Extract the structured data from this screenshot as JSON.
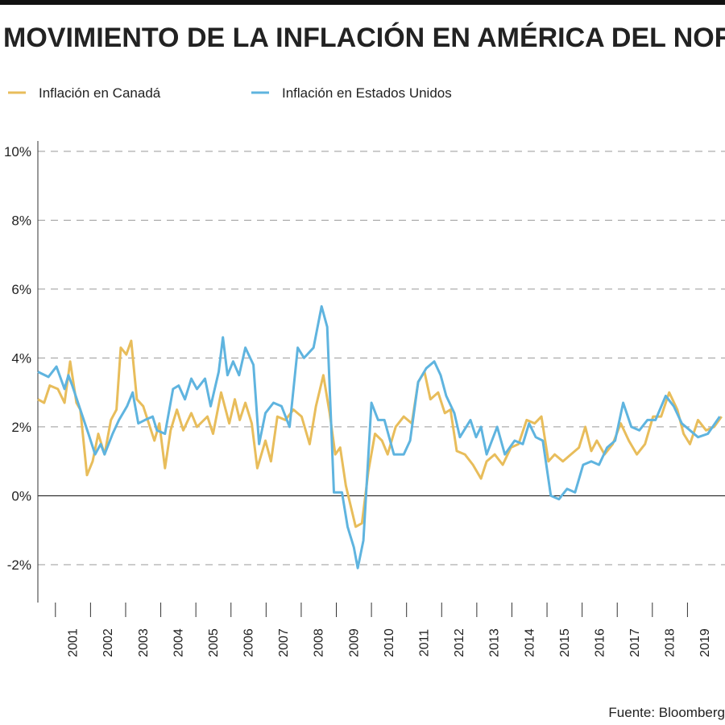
{
  "chart_data": {
    "type": "line",
    "title": "MOVIMIENTO DE LA INFLACIÓN EN AMÉRICA DEL NORTE",
    "source": "Fuente: Bloomberg",
    "xlim": [
      2000.5,
      2020.0
    ],
    "xticks": [
      2001,
      2002,
      2003,
      2004,
      2005,
      2006,
      2007,
      2008,
      2009,
      2010,
      2011,
      2012,
      2013,
      2014,
      2015,
      2016,
      2017,
      2018,
      2019
    ],
    "ylim": [
      -3.1,
      10.3
    ],
    "yticks": [
      {
        "value": -2,
        "label": "-2%"
      },
      {
        "value": 0,
        "label": "0%"
      },
      {
        "value": 2,
        "label": "2%"
      },
      {
        "value": 4,
        "label": "4%"
      },
      {
        "value": 6,
        "label": "6%"
      },
      {
        "value": 8,
        "label": "8%"
      },
      {
        "value": 10,
        "label": "10%"
      }
    ],
    "grid": true,
    "series": [
      {
        "name": "Inflación en Canadá",
        "color": "#e8bd5b",
        "x": [
          2000.5,
          2000.68,
          2000.84,
          2001.07,
          2001.26,
          2001.42,
          2001.6,
          2001.71,
          2001.9,
          2002.06,
          2002.22,
          2002.4,
          2002.58,
          2002.74,
          2002.86,
          2003.02,
          2003.16,
          2003.32,
          2003.5,
          2003.66,
          2003.82,
          2003.96,
          2004.12,
          2004.28,
          2004.46,
          2004.64,
          2004.87,
          2005.03,
          2005.33,
          2005.49,
          2005.72,
          2005.95,
          2006.11,
          2006.25,
          2006.41,
          2006.59,
          2006.75,
          2006.98,
          2007.14,
          2007.32,
          2007.55,
          2007.78,
          2008.01,
          2008.24,
          2008.42,
          2008.63,
          2008.81,
          2008.97,
          2009.11,
          2009.27,
          2009.55,
          2009.73,
          2009.91,
          2010.1,
          2010.3,
          2010.46,
          2010.69,
          2010.92,
          2011.15,
          2011.33,
          2011.51,
          2011.68,
          2011.9,
          2012.09,
          2012.25,
          2012.43,
          2012.66,
          2012.89,
          2013.12,
          2013.28,
          2013.51,
          2013.74,
          2013.97,
          2014.19,
          2014.42,
          2014.65,
          2014.84,
          2015.04,
          2015.22,
          2015.45,
          2015.68,
          2015.91,
          2016.09,
          2016.26,
          2016.42,
          2016.64,
          2016.87,
          2017.1,
          2017.33,
          2017.56,
          2017.79,
          2018.02,
          2018.25,
          2018.48,
          2018.71,
          2018.89,
          2019.07,
          2019.3,
          2019.53,
          2019.76,
          2019.97
        ],
        "values": [
          2.8,
          2.7,
          3.2,
          3.1,
          2.7,
          3.9,
          2.7,
          2.5,
          0.6,
          1.0,
          1.8,
          1.2,
          2.2,
          2.5,
          4.3,
          4.1,
          4.5,
          2.8,
          2.6,
          2.1,
          1.6,
          2.1,
          0.8,
          1.9,
          2.5,
          1.9,
          2.4,
          2.0,
          2.3,
          1.8,
          3.0,
          2.1,
          2.8,
          2.2,
          2.7,
          2.1,
          0.8,
          1.6,
          1.0,
          2.3,
          2.2,
          2.5,
          2.3,
          1.5,
          2.6,
          3.5,
          2.4,
          1.2,
          1.4,
          0.3,
          -0.9,
          -0.8,
          0.7,
          1.8,
          1.6,
          1.2,
          2.0,
          2.3,
          2.1,
          3.3,
          3.6,
          2.8,
          3.0,
          2.4,
          2.5,
          1.3,
          1.2,
          0.9,
          0.5,
          1.0,
          1.2,
          0.9,
          1.4,
          1.5,
          2.2,
          2.1,
          2.3,
          1.0,
          1.2,
          1.0,
          1.2,
          1.4,
          2.0,
          1.3,
          1.6,
          1.2,
          1.5,
          2.1,
          1.6,
          1.2,
          1.5,
          2.3,
          2.3,
          3.0,
          2.5,
          1.8,
          1.5,
          2.2,
          1.9,
          2.0,
          2.3
        ]
      },
      {
        "name": "Inflación en Estados Unidos",
        "color": "#5fb4df",
        "x": [
          2000.5,
          2000.8,
          2001.03,
          2001.26,
          2001.37,
          2001.48,
          2001.71,
          2001.94,
          2002.13,
          2002.29,
          2002.4,
          2002.63,
          2002.81,
          2003.04,
          2003.2,
          2003.36,
          2003.55,
          2003.77,
          2003.89,
          2004.12,
          2004.35,
          2004.51,
          2004.69,
          2004.87,
          2005.03,
          2005.26,
          2005.42,
          2005.65,
          2005.77,
          2005.9,
          2006.06,
          2006.23,
          2006.41,
          2006.64,
          2006.8,
          2006.98,
          2007.21,
          2007.44,
          2007.67,
          2007.9,
          2008.08,
          2008.35,
          2008.58,
          2008.74,
          2008.93,
          2009.16,
          2009.32,
          2009.5,
          2009.61,
          2009.77,
          2010.0,
          2010.19,
          2010.37,
          2010.64,
          2010.92,
          2011.1,
          2011.33,
          2011.56,
          2011.79,
          2011.97,
          2012.13,
          2012.36,
          2012.52,
          2012.82,
          2012.98,
          2013.12,
          2013.28,
          2013.58,
          2013.8,
          2014.08,
          2014.31,
          2014.49,
          2014.68,
          2014.88,
          2015.11,
          2015.34,
          2015.57,
          2015.8,
          2016.03,
          2016.26,
          2016.48,
          2016.71,
          2016.94,
          2017.17,
          2017.4,
          2017.63,
          2017.86,
          2018.09,
          2018.38,
          2018.61,
          2018.84,
          2019.07,
          2019.3,
          2019.58,
          2019.92
        ],
        "values": [
          3.6,
          3.45,
          3.75,
          3.1,
          3.5,
          3.2,
          2.5,
          1.8,
          1.2,
          1.5,
          1.2,
          1.8,
          2.2,
          2.6,
          3.0,
          2.1,
          2.2,
          2.3,
          1.9,
          1.8,
          3.1,
          3.2,
          2.8,
          3.4,
          3.1,
          3.4,
          2.6,
          3.6,
          4.6,
          3.5,
          3.9,
          3.5,
          4.3,
          3.8,
          1.5,
          2.4,
          2.7,
          2.6,
          2.0,
          4.3,
          4.0,
          4.3,
          5.5,
          4.9,
          0.1,
          0.1,
          -0.9,
          -1.5,
          -2.1,
          -1.3,
          2.7,
          2.2,
          2.2,
          1.2,
          1.2,
          1.6,
          3.3,
          3.7,
          3.9,
          3.5,
          2.9,
          2.4,
          1.7,
          2.2,
          1.7,
          2.0,
          1.2,
          2.0,
          1.2,
          1.6,
          1.5,
          2.1,
          1.7,
          1.6,
          0.0,
          -0.1,
          0.2,
          0.1,
          0.9,
          1.0,
          0.9,
          1.4,
          1.6,
          2.7,
          2.0,
          1.9,
          2.2,
          2.2,
          2.9,
          2.6,
          2.1,
          1.9,
          1.7,
          1.8,
          2.3
        ]
      }
    ]
  }
}
